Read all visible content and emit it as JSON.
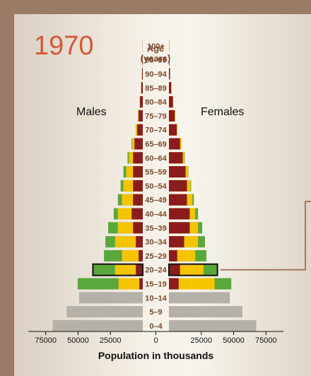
{
  "year": "1970",
  "age_axis_title_line1": "Age",
  "age_axis_title_line2": "(years)",
  "males_label": "Males",
  "females_label": "Females",
  "colors": {
    "background": "#9a7b66",
    "post_reproductive": "#b5b0a8",
    "reproductive_early": "#8a1c1c",
    "reproductive_yellow": "#f5c400",
    "reproductive_green": "#5aa83c",
    "pre_reproductive": "#b5b0a8",
    "highlight_outline": "#111111",
    "callout_line": "#a07860"
  },
  "chart_data": {
    "type": "bar",
    "orientation": "horizontal-population-pyramid",
    "title": "1970",
    "xlabel": "Population in thousands",
    "ylabel": "Age (years)",
    "xlim": [
      -75000,
      75000
    ],
    "x_tick_labels": [
      "75000",
      "50000",
      "25000",
      "0",
      "25000",
      "50000",
      "75000"
    ],
    "categories": [
      "0–4",
      "5–9",
      "10–14",
      "15–19",
      "20–24",
      "25–29",
      "30–34",
      "35–39",
      "40–44",
      "45–49",
      "50–54",
      "55–59",
      "60–64",
      "65–69",
      "70–74",
      "75–79",
      "80–84",
      "85–89",
      "90–94",
      "95–99",
      "100+"
    ],
    "series": [
      {
        "name": "Males",
        "values": [
          65000,
          55000,
          46000,
          47000,
          36000,
          28000,
          27000,
          25000,
          21000,
          18000,
          16000,
          14000,
          11000,
          8000,
          5000,
          3500,
          2200,
          1200,
          600,
          250,
          80
        ]
      },
      {
        "name": "Females",
        "values": [
          63000,
          53000,
          44000,
          45000,
          35000,
          27000,
          26000,
          24000,
          21000,
          18000,
          16000,
          14000,
          11500,
          9000,
          6000,
          4500,
          3000,
          1800,
          800,
          350,
          120
        ]
      }
    ],
    "male_segments": [
      [
        65000,
        0,
        0,
        0
      ],
      [
        55000,
        0,
        0,
        0
      ],
      [
        46000,
        0,
        0,
        0
      ],
      [
        0,
        2500,
        17500,
        47000
      ],
      [
        0,
        5000,
        20000,
        36000
      ],
      [
        0,
        3000,
        15000,
        28000
      ],
      [
        0,
        5000,
        20000,
        27000
      ],
      [
        0,
        7000,
        18000,
        25000
      ],
      [
        0,
        8000,
        18000,
        21000
      ],
      [
        0,
        7000,
        15000,
        18000
      ],
      [
        0,
        7000,
        14000,
        16000
      ],
      [
        0,
        7000,
        12000,
        14000
      ],
      [
        0,
        7000,
        10000,
        11000
      ],
      [
        0,
        6000,
        7500,
        8000
      ],
      [
        0,
        4000,
        4800,
        5000
      ],
      [
        0,
        3000,
        3400,
        3500
      ],
      [
        0,
        2000,
        2200,
        2200
      ],
      [
        0,
        1100,
        1200,
        1200
      ],
      [
        0,
        550,
        600,
        600
      ],
      [
        0,
        230,
        250,
        250
      ],
      [
        0,
        70,
        80,
        80
      ]
    ],
    "female_segments": [
      [
        63000,
        0,
        0,
        0
      ],
      [
        53000,
        0,
        0,
        0
      ],
      [
        44000,
        0,
        0,
        0
      ],
      [
        0,
        7000,
        33000,
        45000
      ],
      [
        0,
        8000,
        25000,
        35000
      ],
      [
        0,
        6000,
        19000,
        27000
      ],
      [
        0,
        11000,
        21000,
        26000
      ],
      [
        0,
        15000,
        21000,
        24000
      ],
      [
        0,
        15000,
        19000,
        21000
      ],
      [
        0,
        13000,
        17000,
        18000
      ],
      [
        0,
        13000,
        15500,
        16000
      ],
      [
        0,
        12000,
        13800,
        14000
      ],
      [
        0,
        10000,
        11300,
        11500
      ],
      [
        0,
        8000,
        8900,
        9000
      ],
      [
        0,
        5600,
        6000,
        6000
      ],
      [
        0,
        4200,
        4500,
        4500
      ],
      [
        0,
        2900,
        3000,
        3000
      ],
      [
        0,
        1700,
        1800,
        1800
      ],
      [
        0,
        780,
        800,
        800
      ],
      [
        0,
        340,
        350,
        350
      ],
      [
        0,
        115,
        120,
        120
      ]
    ],
    "highlighted_group": "20–24",
    "grid": false,
    "legend": "none"
  }
}
